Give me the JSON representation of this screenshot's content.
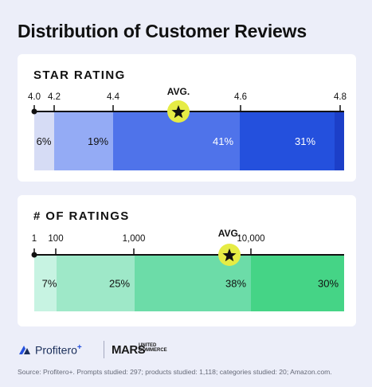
{
  "title": "Distribution of Customer Reviews",
  "chart_data": [
    {
      "type": "bar",
      "title": "STAR RATING",
      "ticks": [
        "4.0",
        "4.2",
        "4.4",
        "4.6",
        "4.8"
      ],
      "segments": [
        {
          "label": "6%",
          "value": 6,
          "color": "#d6dcf5"
        },
        {
          "label": "19%",
          "value": 19,
          "color": "#94abf5"
        },
        {
          "label": "41%",
          "value": 41,
          "color": "#4f73ea"
        },
        {
          "label": "31%",
          "value": 31,
          "color": "#2450dd"
        },
        {
          "label": "",
          "value": 3,
          "color": "#1c3fc8"
        }
      ],
      "avg_label": "AVG.",
      "avg_value": 4.5
    },
    {
      "type": "bar",
      "title": "# OF RATINGS",
      "ticks": [
        "1",
        "100",
        "1,000",
        "10,000"
      ],
      "segments": [
        {
          "label": "7%",
          "value": 7,
          "color": "#c7f3e2"
        },
        {
          "label": "25%",
          "value": 25,
          "color": "#9ee8c8"
        },
        {
          "label": "38%",
          "value": 38,
          "color": "#6cdca8"
        },
        {
          "label": "30%",
          "value": 30,
          "color": "#45d486"
        }
      ],
      "avg_label": "AVG.",
      "avg_value": 5000
    }
  ],
  "colors": {
    "avg_marker": "#e6ec45",
    "axis": "#111111"
  },
  "footer": {
    "brand1": "Profitero",
    "brand1_plus": "+",
    "brand2": "MARS",
    "brand2_sub1": "UNITED",
    "brand2_sub2": "COMMERCE",
    "source": "Source: Profitero+. Prompts studied: 297; products studied: 1,118; categories studied: 20; Amazon.com."
  },
  "icons": [
    "star-icon",
    "profitero-logo-icon"
  ]
}
